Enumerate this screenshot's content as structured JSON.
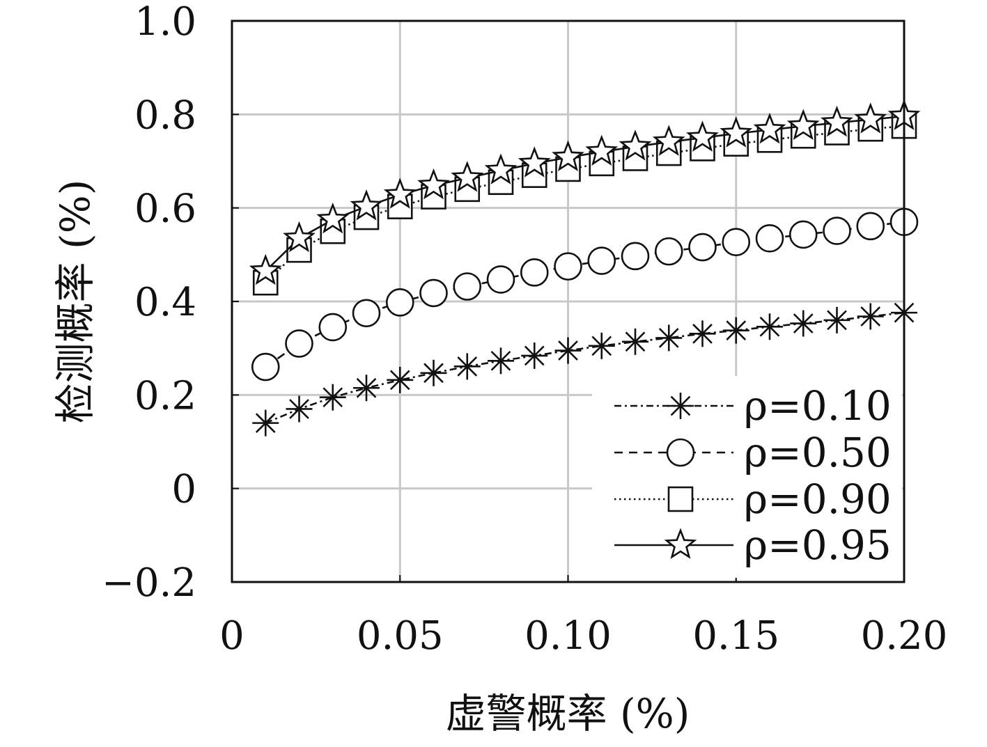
{
  "chart_data": {
    "type": "line",
    "xlabel": "虚警概率 (%)",
    "ylabel": "检测概率 (%)",
    "xlim": [
      0,
      0.2
    ],
    "ylim": [
      -0.2,
      1.0
    ],
    "xticks": [
      0,
      0.05,
      0.1,
      0.15,
      0.2
    ],
    "xtick_labels": [
      "0",
      "0.05",
      "0.10",
      "0.15",
      "0.20"
    ],
    "yticks": [
      -0.2,
      0,
      0.2,
      0.4,
      0.6,
      0.8,
      1.0
    ],
    "ytick_labels": [
      "−0.2",
      "0",
      "0.2",
      "0.4",
      "0.6",
      "0.8",
      "1.0"
    ],
    "grid": true,
    "legend_position": "bottom-right",
    "x": [
      0.01,
      0.02,
      0.03,
      0.04,
      0.05,
      0.06,
      0.07,
      0.08,
      0.09,
      0.1,
      0.11,
      0.12,
      0.13,
      0.14,
      0.15,
      0.16,
      0.17,
      0.18,
      0.19,
      0.2
    ],
    "series": [
      {
        "name": "ρ=0.10",
        "marker": "asterisk",
        "line_style": "dash-dot",
        "values": [
          0.14,
          0.17,
          0.195,
          0.215,
          0.232,
          0.247,
          0.261,
          0.273,
          0.284,
          0.295,
          0.305,
          0.314,
          0.322,
          0.331,
          0.338,
          0.346,
          0.353,
          0.36,
          0.368,
          0.376
        ]
      },
      {
        "name": "ρ=0.50",
        "marker": "circle",
        "line_style": "dashed",
        "values": [
          0.26,
          0.31,
          0.345,
          0.375,
          0.398,
          0.418,
          0.432,
          0.447,
          0.462,
          0.475,
          0.487,
          0.497,
          0.507,
          0.516,
          0.527,
          0.535,
          0.543,
          0.551,
          0.561,
          0.57
        ]
      },
      {
        "name": "ρ=0.90",
        "marker": "square",
        "line_style": "dotted",
        "values": [
          0.44,
          0.51,
          0.55,
          0.58,
          0.603,
          0.624,
          0.64,
          0.655,
          0.67,
          0.683,
          0.695,
          0.706,
          0.717,
          0.727,
          0.737,
          0.745,
          0.754,
          0.761,
          0.769,
          0.775
        ]
      },
      {
        "name": "ρ=0.95",
        "marker": "star",
        "line_style": "solid",
        "values": [
          0.465,
          0.535,
          0.575,
          0.603,
          0.628,
          0.648,
          0.664,
          0.68,
          0.695,
          0.708,
          0.72,
          0.731,
          0.741,
          0.75,
          0.759,
          0.767,
          0.775,
          0.782,
          0.789,
          0.796
        ]
      }
    ]
  }
}
